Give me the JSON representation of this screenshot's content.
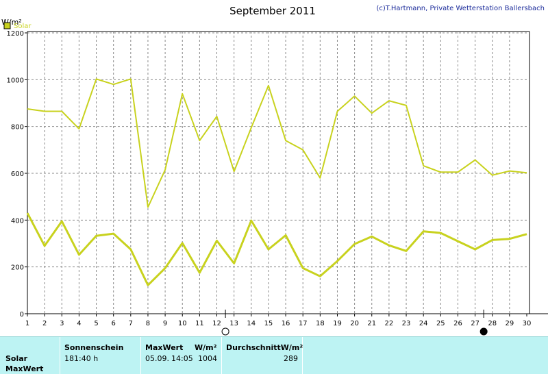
{
  "chart_data": {
    "type": "line",
    "title": "September 2011",
    "credit": "(c)T.Hartmann, Private Wetterstation Ballersbach",
    "ylabel": "W/m²",
    "ylim": [
      0,
      1200
    ],
    "yticks": [
      0,
      200,
      400,
      600,
      800,
      1000,
      1200
    ],
    "x": [
      1,
      2,
      3,
      4,
      5,
      6,
      7,
      8,
      9,
      10,
      11,
      12,
      13,
      14,
      15,
      16,
      17,
      18,
      19,
      20,
      21,
      22,
      23,
      24,
      25,
      26,
      27,
      28,
      29,
      30
    ],
    "legend": {
      "label": "Solar",
      "position": "top-left"
    },
    "color": "#c8d21e",
    "grid": true,
    "series": [
      {
        "values": [
          875,
          865,
          865,
          790,
          1003,
          980,
          1003,
          455,
          615,
          940,
          740,
          843,
          608,
          795,
          975,
          740,
          700,
          580,
          865,
          930,
          857,
          910,
          890,
          632,
          605,
          605,
          657,
          592,
          610,
          602
        ]
      },
      {
        "values": [
          430,
          290,
          395,
          252,
          333,
          342,
          275,
          122,
          195,
          302,
          175,
          312,
          215,
          398,
          275,
          335,
          195,
          160,
          225,
          298,
          330,
          292,
          268,
          352,
          345,
          310,
          275,
          315,
          320,
          340
        ]
      }
    ],
    "moon_markers": [
      {
        "after_day": 12,
        "phase": "full"
      },
      {
        "after_day": 27,
        "phase": "new"
      }
    ]
  },
  "footer": {
    "row_labels": [
      "Solar",
      "MaxWert"
    ],
    "sunshine": {
      "header": "Sonnenschein",
      "value": "181:40 h"
    },
    "max": {
      "header": "MaxWert",
      "unit": "W/m²",
      "date": "05.09.",
      "time": "14:05",
      "value": "1004"
    },
    "avg": {
      "header": "DurchschnittW/m²",
      "value": "289"
    }
  }
}
